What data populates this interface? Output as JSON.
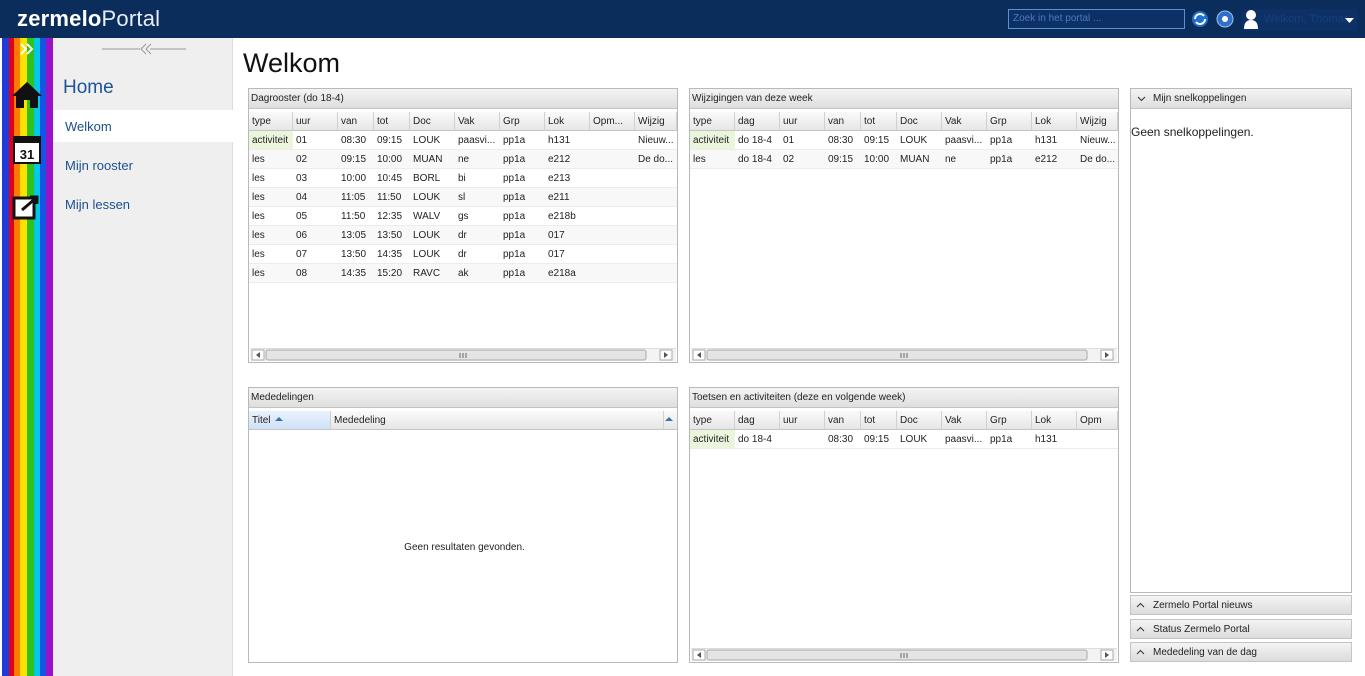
{
  "header": {
    "logo_a": "zermelo",
    "logo_b": "Portal",
    "search_placeholder": "Zoek in het portal ...",
    "user": "Welkom, Thomas"
  },
  "nav": {
    "calendar_day": "31",
    "title": "Home",
    "items": [
      "Welkom",
      "Mijn rooster",
      "Mijn lessen"
    ]
  },
  "page_title": "Welkom",
  "dagrooster": {
    "title": "Dagrooster (do 18-4)",
    "columns": [
      "type",
      "uur",
      "van",
      "tot",
      "Doc",
      "Vak",
      "Grp",
      "Lok",
      "Opm...",
      "Wijzig"
    ],
    "rows": [
      [
        "activiteit",
        "01",
        "08:30",
        "09:15",
        "LOUK",
        "paasvi...",
        "pp1a",
        "h131",
        null,
        "Nieuw..."
      ],
      [
        "les",
        "02",
        "09:15",
        "10:00",
        "MUAN",
        "ne",
        "pp1a",
        "e212",
        null,
        "De do..."
      ],
      [
        "les",
        "03",
        "10:00",
        "10:45",
        "BORL",
        "bi",
        "pp1a",
        "e213",
        null,
        null
      ],
      [
        "les",
        "04",
        "11:05",
        "11:50",
        "LOUK",
        "sl",
        "pp1a",
        "e211",
        null,
        null
      ],
      [
        "les",
        "05",
        "11:50",
        "12:35",
        "WALV",
        "gs",
        "pp1a",
        "e218b",
        null,
        null
      ],
      [
        "les",
        "06",
        "13:05",
        "13:50",
        "LOUK",
        "dr",
        "pp1a",
        "017",
        null,
        null
      ],
      [
        "les",
        "07",
        "13:50",
        "14:35",
        "LOUK",
        "dr",
        "pp1a",
        "017",
        null,
        null
      ],
      [
        "les",
        "08",
        "14:35",
        "15:20",
        "RAVC",
        "ak",
        "pp1a",
        "e218a",
        null,
        null
      ]
    ]
  },
  "wijzigingen": {
    "title": "Wijzigingen van deze week",
    "columns": [
      "type",
      "dag",
      "uur",
      "van",
      "tot",
      "Doc",
      "Vak",
      "Grp",
      "Lok",
      "Wijzig"
    ],
    "rows": [
      [
        "activiteit",
        "do 18-4",
        "01",
        "08:30",
        "09:15",
        "LOUK",
        "paasvi...",
        "pp1a",
        "h131",
        "Nieuw..."
      ],
      [
        "les",
        "do 18-4",
        "02",
        "09:15",
        "10:00",
        "MUAN",
        "ne",
        "pp1a",
        "e212",
        "De do..."
      ]
    ]
  },
  "mededelingen": {
    "title": "Mededelingen",
    "columns": [
      "Titel",
      "Mededeling"
    ],
    "empty": "Geen resultaten gevonden."
  },
  "toetsen": {
    "title": "Toetsen en activiteiten (deze en volgende week)",
    "columns": [
      "type",
      "dag",
      "uur",
      "van",
      "tot",
      "Doc",
      "Vak",
      "Grp",
      "Lok",
      "Opm"
    ],
    "rows": [
      [
        "activiteit",
        "do 18-4",
        null,
        "08:30",
        "09:15",
        "LOUK",
        "paasvi...",
        "pp1a",
        "h131",
        null
      ]
    ]
  },
  "sidebar": {
    "snelkoppelingen": {
      "title": "Mijn snelkoppelingen",
      "empty": "Geen snelkoppelingen."
    },
    "collapsed": [
      "Zermelo Portal nieuws",
      "Status Zermelo Portal",
      "Mededeling van de dag"
    ]
  }
}
